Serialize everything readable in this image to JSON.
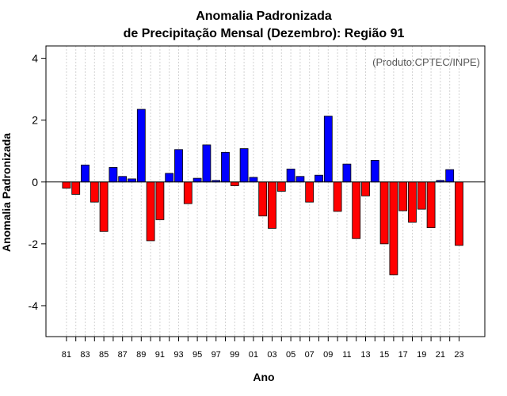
{
  "chart_data": {
    "type": "bar",
    "title": "Anomalia Padronizada",
    "subtitle": "de Precipitação Mensal (Dezembro): Região 91",
    "xlabel": "Ano",
    "ylabel": "Anomalia Padronizada",
    "annotation": "(Produto:CPTEC/INPE)",
    "ylim": [
      -5,
      4.4
    ],
    "yticks": [
      -4,
      -2,
      0,
      2,
      4
    ],
    "yticks_labels": [
      "-4",
      "-2",
      "0",
      "2",
      "4"
    ],
    "grid": true,
    "positive_color": "#0000ff",
    "negative_color": "#ff0000",
    "categories": [
      "1981",
      "1982",
      "1983",
      "1984",
      "1985",
      "1986",
      "1987",
      "1988",
      "1989",
      "1990",
      "1991",
      "1992",
      "1993",
      "1994",
      "1995",
      "1996",
      "1997",
      "1998",
      "1999",
      "2000",
      "2001",
      "2002",
      "2003",
      "2004",
      "2005",
      "2006",
      "2007",
      "2008",
      "2009",
      "2010",
      "2011",
      "2012",
      "2013",
      "2014",
      "2015",
      "2016",
      "2017",
      "2018",
      "2019",
      "2020",
      "2021",
      "2022",
      "2023"
    ],
    "xtick_labels": [
      "81",
      "83",
      "85",
      "87",
      "89",
      "91",
      "93",
      "95",
      "97",
      "99",
      "01",
      "03",
      "05",
      "07",
      "09",
      "11",
      "13",
      "15",
      "17",
      "19",
      "21",
      "23"
    ],
    "values": [
      -0.2,
      -0.4,
      0.55,
      -0.65,
      -1.6,
      0.47,
      0.18,
      0.1,
      2.35,
      -1.9,
      -1.22,
      0.28,
      1.05,
      -0.7,
      0.12,
      1.2,
      0.05,
      0.96,
      -0.12,
      1.08,
      0.15,
      -1.1,
      -1.5,
      -0.3,
      0.42,
      0.18,
      -0.65,
      0.22,
      2.13,
      -0.95,
      0.58,
      -1.83,
      -0.45,
      0.7,
      -2.0,
      -3.0,
      -0.93,
      -1.3,
      -0.88,
      -1.48,
      0.05,
      0.4,
      -2.05
    ]
  }
}
